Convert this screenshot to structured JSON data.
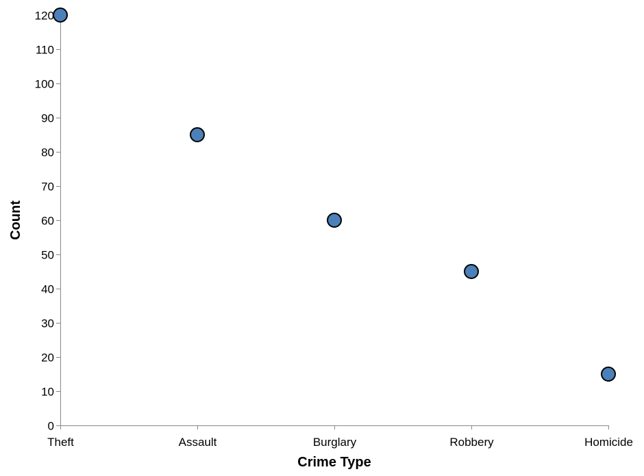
{
  "chart_data": {
    "type": "scatter",
    "title": "",
    "xlabel": "Crime Type",
    "ylabel": "Count",
    "categories": [
      "Theft",
      "Assault",
      "Burglary",
      "Robbery",
      "Homicide"
    ],
    "values": [
      120,
      85,
      60,
      45,
      15
    ],
    "ylim": [
      0,
      120
    ],
    "yticks": [
      0,
      10,
      20,
      30,
      40,
      50,
      60,
      70,
      80,
      90,
      100,
      110,
      120
    ],
    "grid": false,
    "legend": "none",
    "point_color": "#4c80b8",
    "point_stroke": "#000000"
  }
}
